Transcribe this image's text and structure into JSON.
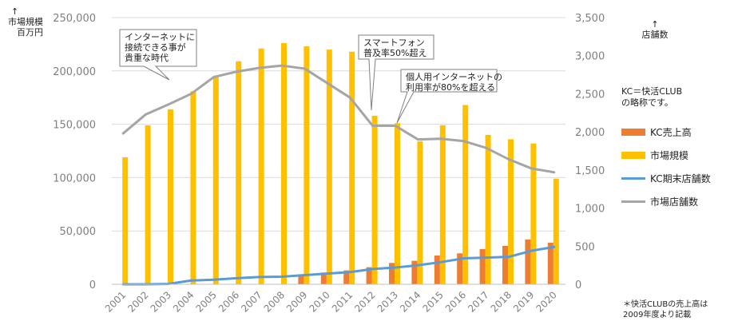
{
  "left_axis_title": {
    "arrow": "↑",
    "line1": "市場規模",
    "line2": "百万円"
  },
  "right_axis_title": {
    "arrow": "↑",
    "line1": "店舗数"
  },
  "legend_note": {
    "line1": "KC＝快活CLUB",
    "line2": "の略称です。"
  },
  "footnote": {
    "line1": "＊快活CLUBの売上高は",
    "line2": "2009年度より記載"
  },
  "annotations": [
    {
      "lines": [
        "インターネットに",
        "接続できる事が",
        "貴重な時代"
      ]
    },
    {
      "lines": [
        "スマートフォン",
        "普及率50%超え"
      ]
    },
    {
      "lines": [
        "個人用インターネットの",
        "利用率が80%を超える"
      ]
    }
  ],
  "colors": {
    "kc_sales": "#ED7D31",
    "market_size": "#FFC000",
    "kc_stores": "#5B9BD5",
    "market_stores": "#A5A5A5",
    "axis_text": "#7F7F7F",
    "grid": "#D9D9D9"
  },
  "chart_data": {
    "type": "bar",
    "categories": [
      "2001",
      "2002",
      "2003",
      "2004",
      "2005",
      "2006",
      "2007",
      "2008",
      "2009",
      "2010",
      "2011",
      "2012",
      "2013",
      "2014",
      "2015",
      "2016",
      "2017",
      "2018",
      "2019",
      "2020"
    ],
    "y_left": {
      "ylim": [
        0,
        250000
      ],
      "ticks": [
        "0",
        "50,000",
        "100,000",
        "150,000",
        "200,000",
        "250,000"
      ]
    },
    "y_right": {
      "ylim": [
        0,
        3500
      ],
      "ticks": [
        "0",
        "500",
        "1,000",
        "1,500",
        "2,000",
        "2,500",
        "3,000",
        "3,500"
      ]
    },
    "grid": true,
    "legend_position": "right",
    "series": [
      {
        "name": "KC売上高",
        "type": "bar",
        "axis": "left",
        "values": [
          null,
          null,
          null,
          null,
          null,
          null,
          null,
          null,
          9000,
          11000,
          13000,
          16000,
          20000,
          22000,
          27000,
          29000,
          33000,
          36000,
          42000,
          39000
        ]
      },
      {
        "name": "市場規模",
        "type": "bar",
        "axis": "left",
        "values": [
          119000,
          149000,
          164000,
          181000,
          194000,
          209000,
          221000,
          226000,
          223000,
          220000,
          218000,
          158000,
          151000,
          134000,
          149000,
          168000,
          140000,
          136000,
          132000,
          99000
        ]
      },
      {
        "name": "KC期末店舗数",
        "type": "line",
        "axis": "right",
        "values": [
          0,
          0,
          5,
          50,
          60,
          80,
          95,
          100,
          120,
          140,
          160,
          200,
          220,
          250,
          290,
          340,
          350,
          360,
          440,
          490
        ]
      },
      {
        "name": "市場店舗数",
        "type": "line",
        "axis": "right",
        "values": [
          1980,
          2230,
          2360,
          2500,
          2720,
          2790,
          2840,
          2870,
          2830,
          2640,
          2450,
          2080,
          2080,
          1900,
          1910,
          1880,
          1790,
          1640,
          1520,
          1470
        ]
      }
    ]
  }
}
